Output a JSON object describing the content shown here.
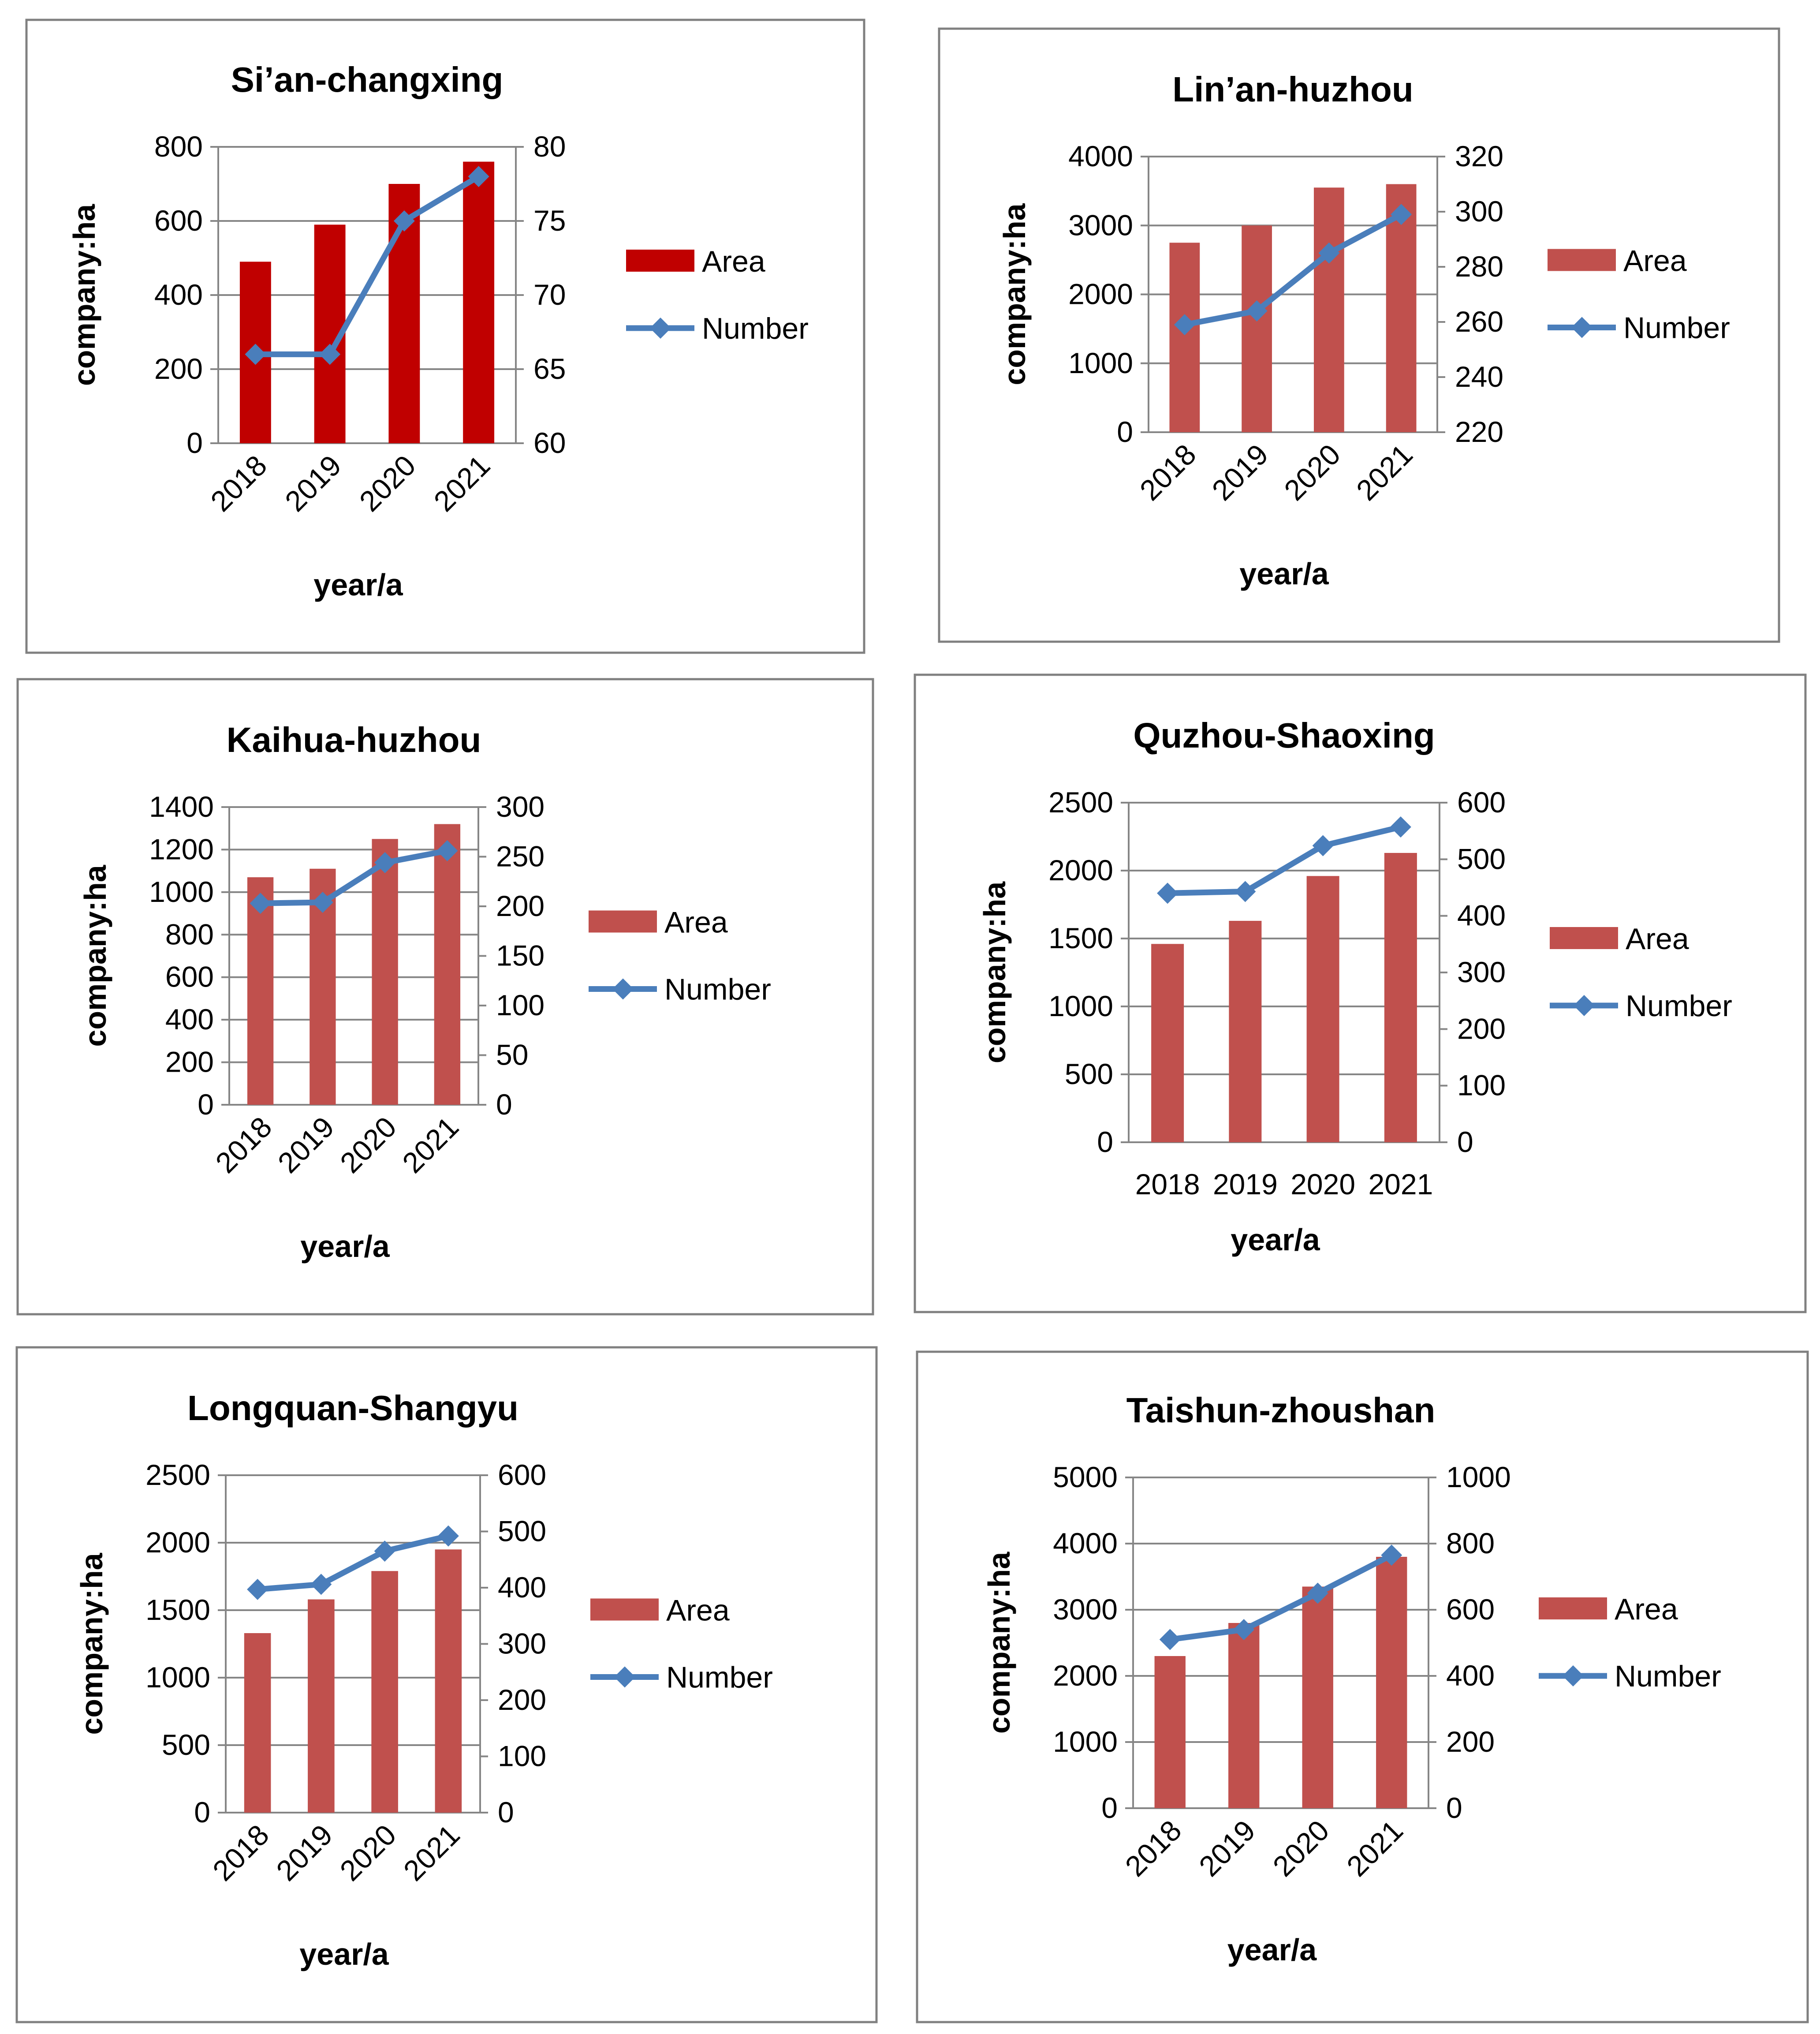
{
  "chart_data": [
    {
      "type": "bar",
      "title": "Si’an-changxing",
      "categories": [
        "2018",
        "2019",
        "2020",
        "2021"
      ],
      "series": [
        {
          "name": "Area",
          "kind": "bar",
          "axis": "left",
          "values": [
            490,
            590,
            700,
            760
          ]
        },
        {
          "name": "Number",
          "kind": "line",
          "axis": "right",
          "values": [
            66,
            66,
            75,
            78
          ]
        }
      ],
      "xlabel": "year/a",
      "ylabel": "company:ha",
      "ylim": [
        0,
        800
      ],
      "yticks": [
        0,
        200,
        400,
        600,
        800
      ],
      "y2lim": [
        60,
        80
      ],
      "y2ticks": [
        60,
        65,
        70,
        75,
        80
      ],
      "bar_color": "#c00000",
      "line_color": "#4a7ebb",
      "rotate_xticks": true,
      "legend": "right"
    },
    {
      "type": "bar",
      "title": "Lin’an-huzhou",
      "categories": [
        "2018",
        "2019",
        "2020",
        "2021"
      ],
      "series": [
        {
          "name": "Area",
          "kind": "bar",
          "axis": "left",
          "values": [
            2750,
            3000,
            3550,
            3600
          ]
        },
        {
          "name": "Number",
          "kind": "line",
          "axis": "right",
          "values": [
            259,
            264,
            285,
            299
          ]
        }
      ],
      "xlabel": "year/a",
      "ylabel": "company:ha",
      "ylim": [
        0,
        4000
      ],
      "yticks": [
        0,
        1000,
        2000,
        3000,
        4000
      ],
      "y2lim": [
        220,
        320
      ],
      "y2ticks": [
        220,
        240,
        260,
        280,
        300,
        320
      ],
      "bar_color": "#c0504d",
      "line_color": "#4a7ebb",
      "rotate_xticks": true,
      "legend": "right"
    },
    {
      "type": "bar",
      "title": "Kaihua-huzhou",
      "categories": [
        "2018",
        "2019",
        "2020",
        "2021"
      ],
      "series": [
        {
          "name": "Area",
          "kind": "bar",
          "axis": "left",
          "values": [
            1070,
            1110,
            1250,
            1320
          ]
        },
        {
          "name": "Number",
          "kind": "line",
          "axis": "right",
          "values": [
            203,
            204,
            244,
            256
          ]
        }
      ],
      "xlabel": "year/a",
      "ylabel": "company:ha",
      "ylim": [
        0,
        1400
      ],
      "yticks": [
        0,
        200,
        400,
        600,
        800,
        1000,
        1200,
        1400
      ],
      "y2lim": [
        0,
        300
      ],
      "y2ticks": [
        0,
        50,
        100,
        150,
        200,
        250,
        300
      ],
      "bar_color": "#c0504d",
      "line_color": "#4a7ebb",
      "rotate_xticks": true,
      "legend": "right"
    },
    {
      "type": "bar",
      "title": "Quzhou-Shaoxing",
      "categories": [
        "2018",
        "2019",
        "2020",
        "2021"
      ],
      "series": [
        {
          "name": "Area",
          "kind": "bar",
          "axis": "left",
          "values": [
            1460,
            1630,
            1960,
            2130
          ]
        },
        {
          "name": "Number",
          "kind": "line",
          "axis": "right",
          "values": [
            440,
            443,
            524,
            557
          ]
        }
      ],
      "xlabel": "year/a",
      "ylabel": "company:ha",
      "ylim": [
        0,
        2500
      ],
      "yticks": [
        0,
        500,
        1000,
        1500,
        2000,
        2500
      ],
      "y2lim": [
        0,
        600
      ],
      "y2ticks": [
        0,
        100,
        200,
        300,
        400,
        500,
        600
      ],
      "bar_color": "#c0504d",
      "line_color": "#4a7ebb",
      "rotate_xticks": false,
      "legend": "right"
    },
    {
      "type": "bar",
      "title": "Longquan-Shangyu",
      "categories": [
        "2018",
        "2019",
        "2020",
        "2021"
      ],
      "series": [
        {
          "name": "Area",
          "kind": "bar",
          "axis": "left",
          "values": [
            1330,
            1580,
            1790,
            1950
          ]
        },
        {
          "name": "Number",
          "kind": "line",
          "axis": "right",
          "values": [
            397,
            406,
            465,
            492
          ]
        }
      ],
      "xlabel": "year/a",
      "ylabel": "company:ha",
      "ylim": [
        0,
        2500
      ],
      "yticks": [
        0,
        500,
        1000,
        1500,
        2000,
        2500
      ],
      "y2lim": [
        0,
        600
      ],
      "y2ticks": [
        0,
        100,
        200,
        300,
        400,
        500,
        600
      ],
      "bar_color": "#c0504d",
      "line_color": "#4a7ebb",
      "rotate_xticks": true,
      "legend": "right"
    },
    {
      "type": "bar",
      "title": "Taishun-zhoushan",
      "categories": [
        "2018",
        "2019",
        "2020",
        "2021"
      ],
      "series": [
        {
          "name": "Area",
          "kind": "bar",
          "axis": "left",
          "values": [
            2300,
            2800,
            3350,
            3800
          ]
        },
        {
          "name": "Number",
          "kind": "line",
          "axis": "right",
          "values": [
            510,
            540,
            650,
            765
          ]
        }
      ],
      "xlabel": "year/a",
      "ylabel": "company:ha",
      "ylim": [
        0,
        5000
      ],
      "yticks": [
        0,
        1000,
        2000,
        3000,
        4000,
        5000
      ],
      "y2lim": [
        0,
        1000
      ],
      "y2ticks": [
        0,
        200,
        400,
        600,
        800,
        1000
      ],
      "bar_color": "#c0504d",
      "line_color": "#4a7ebb",
      "rotate_xticks": true,
      "legend": "right"
    }
  ]
}
